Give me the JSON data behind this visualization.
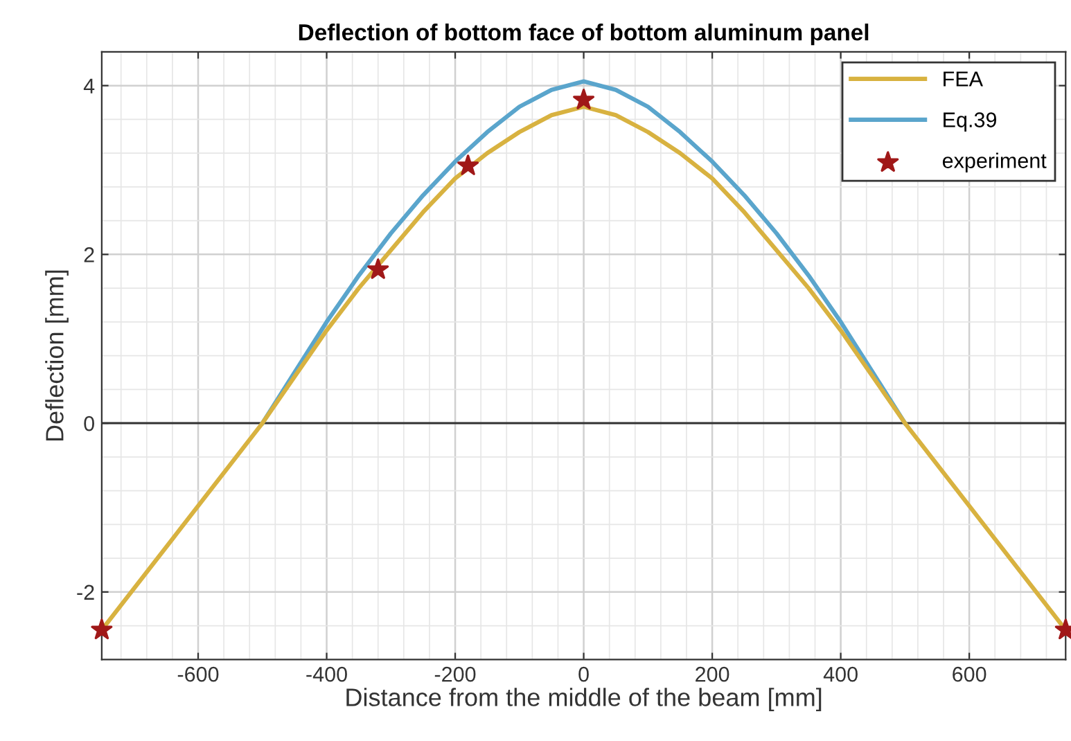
{
  "chart_data": {
    "type": "line",
    "title": "Deflection of bottom face of bottom aluminum panel",
    "xlabel": "Distance from the middle of the beam [mm]",
    "ylabel": "Deflection [mm]",
    "xlim": [
      -750,
      750
    ],
    "ylim": [
      -2.8,
      4.4
    ],
    "xticks": [
      -600,
      -400,
      -200,
      0,
      200,
      400,
      600
    ],
    "yticks": [
      -2,
      0,
      2,
      4
    ],
    "grid": true,
    "legend": "top right",
    "ref_lines": [
      {
        "axis": "y",
        "value": 0,
        "color": "#333333",
        "line_style": "solid"
      }
    ],
    "series": [
      {
        "name": "FEA",
        "color": "#d8b240",
        "line_style": "solid",
        "marker": "none",
        "x": [
          -750,
          -500,
          -450,
          -400,
          -350,
          -300,
          -250,
          -200,
          -150,
          -100,
          -50,
          0,
          50,
          100,
          150,
          200,
          250,
          300,
          350,
          400,
          450,
          500,
          750
        ],
        "values": [
          -2.45,
          0,
          0.55,
          1.1,
          1.6,
          2.05,
          2.5,
          2.9,
          3.2,
          3.45,
          3.65,
          3.75,
          3.65,
          3.45,
          3.2,
          2.9,
          2.5,
          2.05,
          1.6,
          1.1,
          0.55,
          0,
          -2.45
        ]
      },
      {
        "name": "Eq.39",
        "color": "#5aa5cc",
        "line_style": "solid",
        "marker": "none",
        "x": [
          -500,
          -450,
          -400,
          -350,
          -300,
          -250,
          -200,
          -150,
          -100,
          -50,
          0,
          50,
          100,
          150,
          200,
          250,
          300,
          350,
          400,
          450,
          500
        ],
        "values": [
          0,
          0.6,
          1.2,
          1.75,
          2.25,
          2.7,
          3.1,
          3.45,
          3.75,
          3.95,
          4.05,
          3.95,
          3.75,
          3.45,
          3.1,
          2.7,
          2.25,
          1.75,
          1.2,
          0.6,
          0
        ]
      },
      {
        "name": "experiment",
        "color": "#a01818",
        "type": "scatter",
        "marker": "star",
        "x": [
          -750,
          -320,
          -180,
          0,
          750
        ],
        "values": [
          -2.45,
          1.82,
          3.05,
          3.83,
          -2.45
        ]
      }
    ]
  }
}
